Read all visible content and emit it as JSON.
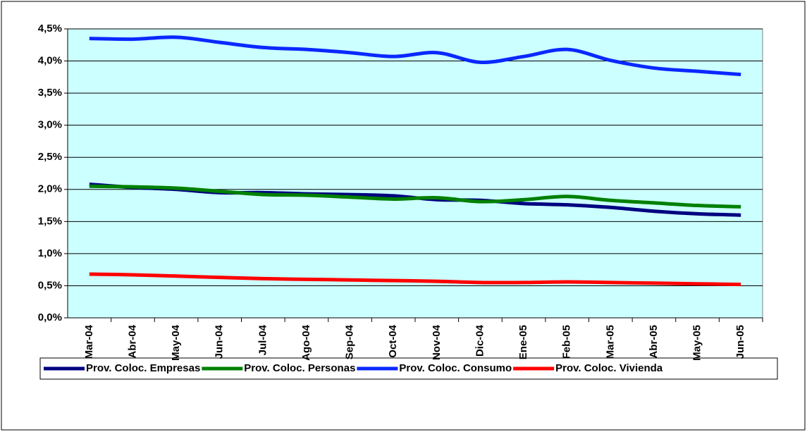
{
  "chart_data": {
    "type": "line",
    "categories": [
      "Mar-04",
      "Abr-04",
      "May-04",
      "Jun-04",
      "Jul-04",
      "Ago-04",
      "Sep-04",
      "Oct-04",
      "Nov-04",
      "Dic-04",
      "Ene-05",
      "Feb-05",
      "Mar-05",
      "Abr-05",
      "May-05",
      "Jun-05"
    ],
    "series": [
      {
        "name": "Prov. Coloc. Empresas",
        "color": "#000080",
        "values": [
          2.08,
          2.03,
          2.0,
          1.95,
          1.95,
          1.93,
          1.92,
          1.9,
          1.84,
          1.83,
          1.78,
          1.76,
          1.72,
          1.66,
          1.62,
          1.6
        ]
      },
      {
        "name": "Prov. Coloc. Personas",
        "color": "#008000",
        "values": [
          2.05,
          2.04,
          2.02,
          1.97,
          1.92,
          1.91,
          1.88,
          1.85,
          1.87,
          1.81,
          1.84,
          1.89,
          1.83,
          1.79,
          1.75,
          1.73
        ]
      },
      {
        "name": "Prov. Coloc. Consumo",
        "color": "#0a28ff",
        "values": [
          4.35,
          4.34,
          4.37,
          4.29,
          4.21,
          4.18,
          4.13,
          4.07,
          4.13,
          3.98,
          4.07,
          4.18,
          4.01,
          3.89,
          3.84,
          3.79
        ]
      },
      {
        "name": "Prov. Coloc. Vivienda",
        "color": "#ff0000",
        "values": [
          0.68,
          0.67,
          0.65,
          0.63,
          0.61,
          0.6,
          0.59,
          0.58,
          0.57,
          0.55,
          0.55,
          0.56,
          0.55,
          0.54,
          0.53,
          0.52
        ]
      }
    ],
    "ylim": [
      0,
      4.5
    ],
    "yticks": [
      {
        "value": 0,
        "label": "0,0%"
      },
      {
        "value": 0.5,
        "label": "0,5%"
      },
      {
        "value": 1,
        "label": "1,0%"
      },
      {
        "value": 1.5,
        "label": "1,5%"
      },
      {
        "value": 2,
        "label": "2,0%"
      },
      {
        "value": 2.5,
        "label": "2,5%"
      },
      {
        "value": 3,
        "label": "3,0%"
      },
      {
        "value": 3.5,
        "label": "3,5%"
      },
      {
        "value": 4,
        "label": "4,0%"
      },
      {
        "value": 4.5,
        "label": "4,5%"
      }
    ],
    "grid": true,
    "legend": "bottom"
  }
}
